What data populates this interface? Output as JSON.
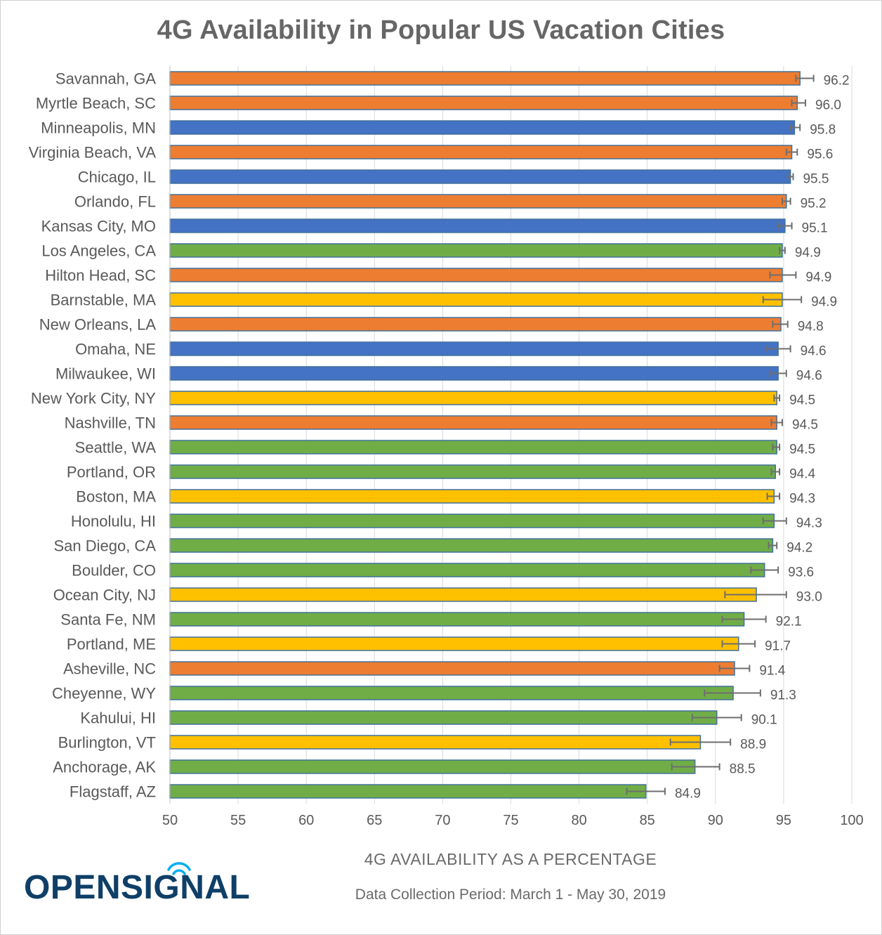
{
  "chart_data": {
    "type": "bar",
    "orientation": "horizontal",
    "title": "4G Availability in Popular US Vacation Cities",
    "xlabel": "4G AVAILABILITY AS A PERCENTAGE",
    "subtitle": "Data Collection Period: March 1 - May 30, 2019",
    "xlim": [
      50,
      100
    ],
    "xticks": [
      50,
      55,
      60,
      65,
      70,
      75,
      80,
      85,
      90,
      95,
      100
    ],
    "grid": "vertical",
    "categories": [
      "Savannah, GA",
      "Myrtle Beach, SC",
      "Minneapolis, MN",
      "Virginia Beach, VA",
      "Chicago, IL",
      "Orlando, FL",
      "Kansas City, MO",
      "Los Angeles, CA",
      "Hilton Head, SC",
      "Barnstable, MA",
      "New Orleans, LA",
      "Omaha, NE",
      "Milwaukee, WI",
      "New York City, NY",
      "Nashville, TN",
      "Seattle, WA",
      "Portland, OR",
      "Boston, MA",
      "Honolulu, HI",
      "San Diego, CA",
      "Boulder, CO",
      "Ocean City, NJ",
      "Santa Fe, NM",
      "Portland, ME",
      "Asheville, NC",
      "Cheyenne, WY",
      "Kahului, HI",
      "Burlington, VT",
      "Anchorage, AK",
      "Flagstaff, AZ"
    ],
    "values": [
      96.2,
      96.0,
      95.8,
      95.6,
      95.5,
      95.2,
      95.1,
      94.9,
      94.9,
      94.9,
      94.8,
      94.6,
      94.6,
      94.5,
      94.5,
      94.5,
      94.4,
      94.3,
      94.3,
      94.2,
      93.6,
      93.0,
      92.1,
      91.7,
      91.4,
      91.3,
      90.1,
      88.9,
      88.5,
      84.9
    ],
    "value_labels": [
      "96.2",
      "96.0",
      "95.8",
      "95.6",
      "95.5",
      "95.2",
      "95.1",
      "94.9",
      "94.9",
      "94.9",
      "94.8",
      "94.6",
      "94.6",
      "94.5",
      "94.5",
      "94.5",
      "94.4",
      "94.3",
      "94.3",
      "94.2",
      "93.6",
      "93.0",
      "92.1",
      "91.7",
      "91.4",
      "91.3",
      "90.1",
      "88.9",
      "88.5",
      "84.9"
    ],
    "error_low": [
      95.9,
      95.6,
      95.5,
      95.2,
      95.3,
      94.9,
      94.6,
      94.7,
      94.0,
      93.5,
      94.2,
      93.7,
      94.0,
      94.3,
      94.1,
      94.2,
      94.1,
      93.8,
      93.5,
      93.9,
      92.6,
      90.7,
      90.5,
      90.5,
      90.3,
      89.2,
      88.3,
      86.7,
      86.8,
      83.5
    ],
    "error_high": [
      97.2,
      96.6,
      96.2,
      96.0,
      95.7,
      95.5,
      95.6,
      95.1,
      95.9,
      96.3,
      95.3,
      95.5,
      95.2,
      94.7,
      94.9,
      94.7,
      94.7,
      94.7,
      95.2,
      94.5,
      94.6,
      95.2,
      93.7,
      92.9,
      92.5,
      93.3,
      91.9,
      91.1,
      90.3,
      86.3
    ],
    "bar_color_keys": [
      "orange",
      "orange",
      "blue",
      "orange",
      "blue",
      "orange",
      "blue",
      "green",
      "orange",
      "yellow",
      "orange",
      "blue",
      "blue",
      "yellow",
      "orange",
      "green",
      "green",
      "yellow",
      "green",
      "green",
      "green",
      "yellow",
      "green",
      "yellow",
      "orange",
      "green",
      "green",
      "yellow",
      "green",
      "green"
    ],
    "colors": {
      "orange": "#ED7D31",
      "blue": "#4472C4",
      "green": "#70AD47",
      "yellow": "#FFC000",
      "bar_outline": "#41719C",
      "error_bar": "#6E6E6E",
      "grid": "#D9D9D9",
      "text": "#595959"
    }
  },
  "logo": {
    "text": "OPENSIGNAL",
    "color": "#0F3F67",
    "accent_color": "#00AEEF"
  }
}
